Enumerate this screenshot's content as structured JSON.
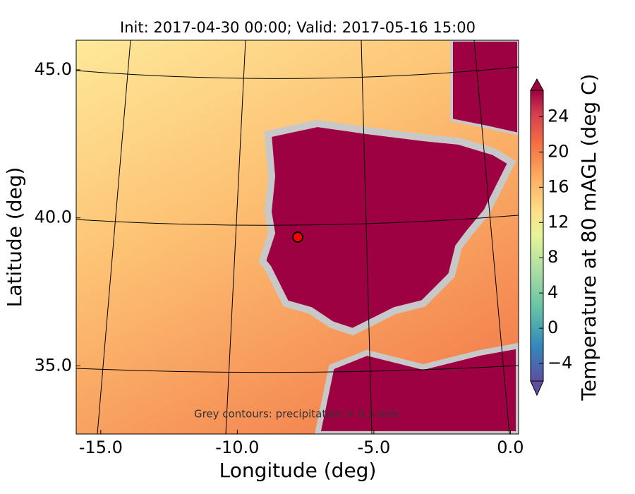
{
  "title": "Init: 2017-04-30 00:00; Valid: 2017-05-16 15:00",
  "annotation": "Grey contours: precipitation > 0.5 mm",
  "x_axis": {
    "label": "Longitude (deg)",
    "lim": [
      -15.9,
      0.3
    ],
    "ticks": [
      {
        "value": -15,
        "label": "-15.0"
      },
      {
        "value": -10,
        "label": "-10.0"
      },
      {
        "value": -5,
        "label": "-5.0"
      },
      {
        "value": 0,
        "label": "0.0"
      }
    ]
  },
  "y_axis": {
    "label": "Latitude (deg)",
    "lim": [
      32.7,
      46.0
    ],
    "ticks": [
      {
        "value": 35,
        "label": "35.0"
      },
      {
        "value": 40,
        "label": "40.0"
      },
      {
        "value": 45,
        "label": "45.0"
      }
    ]
  },
  "colorbar": {
    "label": "Temperature at 80 mAGL (deg C)",
    "lim": [
      -6,
      27
    ],
    "ticks": [
      {
        "value": -4,
        "label": "−4"
      },
      0,
      4,
      8,
      12,
      16,
      20,
      24
    ]
  }
}
